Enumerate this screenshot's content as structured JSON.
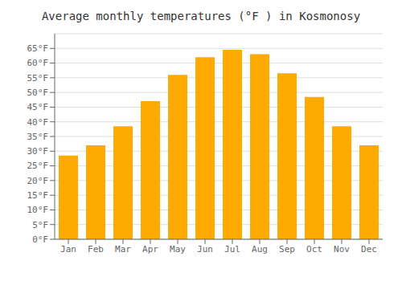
{
  "chart_data": {
    "type": "bar",
    "title": "Average monthly temperatures (°F ) in Kosmonosy",
    "categories": [
      "Jan",
      "Feb",
      "Mar",
      "Apr",
      "May",
      "Jun",
      "Jul",
      "Aug",
      "Sep",
      "Oct",
      "Nov",
      "Dec"
    ],
    "values": [
      28.5,
      32.0,
      38.5,
      47.0,
      56.0,
      62.0,
      64.5,
      63.0,
      56.5,
      48.5,
      38.5,
      32.0
    ],
    "color": "#FFAA00",
    "ylim": [
      0,
      70
    ],
    "yticks": [
      {
        "value": 0,
        "label": "0°F"
      },
      {
        "value": 5,
        "label": "5°F"
      },
      {
        "value": 10,
        "label": "10°F"
      },
      {
        "value": 15,
        "label": "15°F"
      },
      {
        "value": 20,
        "label": "20°F"
      },
      {
        "value": 25,
        "label": "25°F"
      },
      {
        "value": 30,
        "label": "30°F"
      },
      {
        "value": 35,
        "label": "35°F"
      },
      {
        "value": 40,
        "label": "40°F"
      },
      {
        "value": 45,
        "label": "45°F"
      },
      {
        "value": 50,
        "label": "50°F"
      },
      {
        "value": 55,
        "label": "55°F"
      },
      {
        "value": 60,
        "label": "60°F"
      },
      {
        "value": 65,
        "label": "65°F"
      }
    ],
    "grid": true
  }
}
